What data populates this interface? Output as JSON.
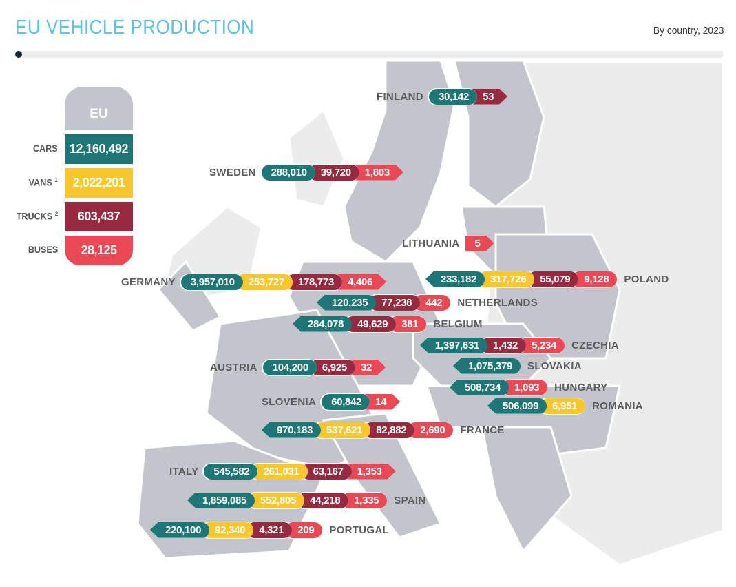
{
  "header": {
    "title": "EU VEHICLE PRODUCTION",
    "subtitle": "By country, 2023"
  },
  "colors": {
    "cars": "#1e7676",
    "vans": "#f8c72e",
    "trucks": "#962b40",
    "buses": "#e94855"
  },
  "legend": {
    "head": "EU",
    "items": [
      {
        "type": "cars",
        "label": "CARS",
        "sup": "",
        "value": "12,160,492"
      },
      {
        "type": "vans",
        "label": "VANS",
        "sup": "1",
        "value": "2,022,201"
      },
      {
        "type": "trucks",
        "label": "TRUCKS",
        "sup": "2",
        "value": "603,437"
      },
      {
        "type": "buses",
        "label": "BUSES",
        "sup": "",
        "value": "28,125"
      }
    ]
  },
  "chart_data": {
    "type": "table",
    "title": "EU VEHICLE PRODUCTION",
    "subtitle": "By country, 2023",
    "columns": [
      "cars",
      "vans",
      "trucks",
      "buses"
    ],
    "eu_total": {
      "cars": 12160492,
      "vans": 2022201,
      "trucks": 603437,
      "buses": 28125
    },
    "countries": [
      {
        "name": "FINLAND",
        "segments": [
          {
            "type": "cars",
            "value": "30,142"
          },
          {
            "type": "trucks",
            "value": "53"
          }
        ]
      },
      {
        "name": "SWEDEN",
        "segments": [
          {
            "type": "cars",
            "value": "288,010"
          },
          {
            "type": "trucks",
            "value": "39,720"
          },
          {
            "type": "buses",
            "value": "1,803"
          }
        ]
      },
      {
        "name": "LITHUANIA",
        "segments": [
          {
            "type": "buses",
            "value": "5"
          }
        ]
      },
      {
        "name": "POLAND",
        "segments": [
          {
            "type": "cars",
            "value": "233,182"
          },
          {
            "type": "vans",
            "value": "317,726"
          },
          {
            "type": "trucks",
            "value": "55,079"
          },
          {
            "type": "buses",
            "value": "9,128"
          }
        ]
      },
      {
        "name": "GERMANY",
        "segments": [
          {
            "type": "cars",
            "value": "3,957,010"
          },
          {
            "type": "vans",
            "value": "253,727"
          },
          {
            "type": "trucks",
            "value": "178,773"
          },
          {
            "type": "buses",
            "value": "4,406"
          }
        ]
      },
      {
        "name": "NETHERLANDS",
        "segments": [
          {
            "type": "cars",
            "value": "120,235"
          },
          {
            "type": "trucks",
            "value": "77,238"
          },
          {
            "type": "buses",
            "value": "442"
          }
        ]
      },
      {
        "name": "BELGIUM",
        "segments": [
          {
            "type": "cars",
            "value": "284,078"
          },
          {
            "type": "trucks",
            "value": "49,629"
          },
          {
            "type": "buses",
            "value": "381"
          }
        ]
      },
      {
        "name": "CZECHIA",
        "segments": [
          {
            "type": "cars",
            "value": "1,397,631"
          },
          {
            "type": "trucks",
            "value": "1,432"
          },
          {
            "type": "buses",
            "value": "5,234"
          }
        ]
      },
      {
        "name": "AUSTRIA",
        "segments": [
          {
            "type": "cars",
            "value": "104,200"
          },
          {
            "type": "trucks",
            "value": "6,925"
          },
          {
            "type": "buses",
            "value": "32"
          }
        ]
      },
      {
        "name": "SLOVAKIA",
        "segments": [
          {
            "type": "cars",
            "value": "1,075,379"
          }
        ]
      },
      {
        "name": "HUNGARY",
        "segments": [
          {
            "type": "cars",
            "value": "508,734"
          },
          {
            "type": "buses",
            "value": "1,093"
          }
        ]
      },
      {
        "name": "SLOVENIA",
        "segments": [
          {
            "type": "cars",
            "value": "60,842"
          },
          {
            "type": "buses",
            "value": "14"
          }
        ]
      },
      {
        "name": "ROMANIA",
        "segments": [
          {
            "type": "cars",
            "value": "506,099"
          },
          {
            "type": "vans",
            "value": "6,951"
          }
        ]
      },
      {
        "name": "FRANCE",
        "segments": [
          {
            "type": "cars",
            "value": "970,183"
          },
          {
            "type": "vans",
            "value": "537,621"
          },
          {
            "type": "trucks",
            "value": "82,882"
          },
          {
            "type": "buses",
            "value": "2,690"
          }
        ]
      },
      {
        "name": "ITALY",
        "segments": [
          {
            "type": "cars",
            "value": "545,582"
          },
          {
            "type": "vans",
            "value": "261,031"
          },
          {
            "type": "trucks",
            "value": "63,167"
          },
          {
            "type": "buses",
            "value": "1,353"
          }
        ]
      },
      {
        "name": "SPAIN",
        "segments": [
          {
            "type": "cars",
            "value": "1,859,085"
          },
          {
            "type": "vans",
            "value": "552,805"
          },
          {
            "type": "trucks",
            "value": "44,218"
          },
          {
            "type": "buses",
            "value": "1,335"
          }
        ]
      },
      {
        "name": "PORTUGAL",
        "segments": [
          {
            "type": "cars",
            "value": "220,100"
          },
          {
            "type": "vans",
            "value": "92,340"
          },
          {
            "type": "trucks",
            "value": "4,321"
          },
          {
            "type": "buses",
            "value": "209"
          }
        ]
      }
    ]
  }
}
